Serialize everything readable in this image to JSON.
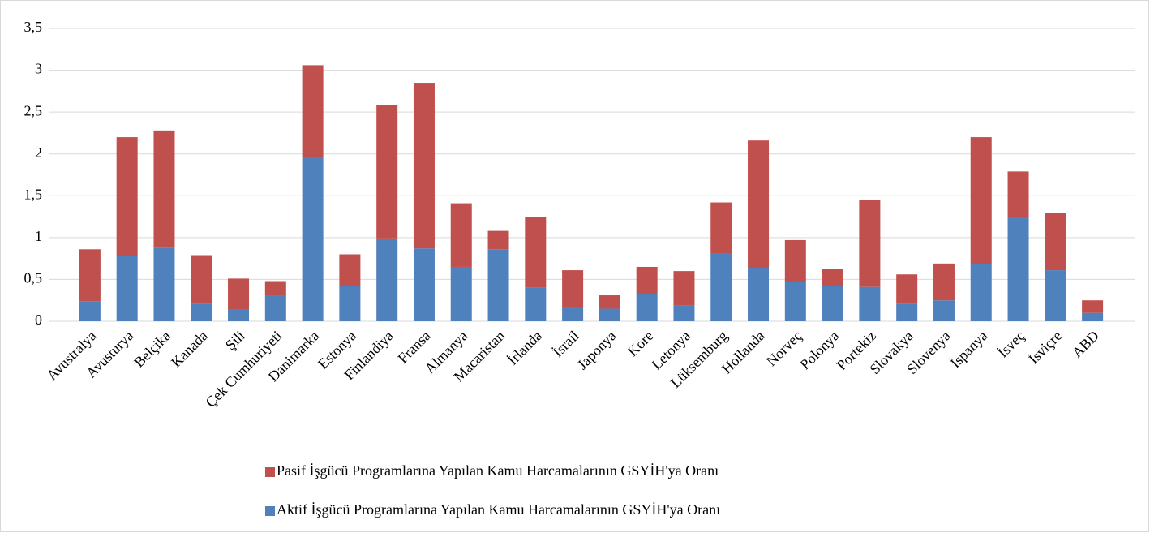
{
  "chart_data": {
    "type": "stacked_bar",
    "categories": [
      "Avustralya",
      "Avusturya",
      "Belçika",
      "Kanada",
      "Şili",
      "Çek Cumhuriyeti",
      "Danimarka",
      "Estonya",
      "Finlandiya",
      "Fransa",
      "Almanya",
      "Macaristan",
      "İrlanda",
      "İsrail",
      "Japonya",
      "Kore",
      "Letonya",
      "Lüksemburg",
      "Hollanda",
      "Norveç",
      "Polonya",
      "Portekiz",
      "Slovakya",
      "Slovenya",
      "İspanya",
      "İsveç",
      "İsviçre",
      "ABD"
    ],
    "series": [
      {
        "name": "Aktif İşgücü Programlarına Yapılan Kamu Harcamalarının GSYİH'ya Oranı",
        "color": "#4f81bd",
        "values": [
          0.24,
          0.78,
          0.88,
          0.21,
          0.14,
          0.31,
          1.96,
          0.42,
          0.99,
          0.87,
          0.65,
          0.86,
          0.4,
          0.17,
          0.15,
          0.32,
          0.19,
          0.81,
          0.64,
          0.47,
          0.42,
          0.41,
          0.21,
          0.25,
          0.68,
          1.25,
          0.61,
          0.1
        ]
      },
      {
        "name": "Pasif İşgücü Programlarına Yapılan Kamu Harcamalarının GSYİH'ya Oranı",
        "color": "#c0504d",
        "values": [
          0.62,
          1.42,
          1.4,
          0.58,
          0.37,
          0.17,
          1.1,
          0.38,
          1.59,
          1.98,
          0.76,
          0.22,
          0.85,
          0.44,
          0.16,
          0.33,
          0.41,
          0.61,
          1.52,
          0.5,
          0.21,
          1.04,
          0.35,
          0.44,
          1.52,
          0.54,
          0.68,
          0.15
        ]
      }
    ],
    "ylim": [
      0,
      3.5
    ],
    "yticks": [
      0,
      {
        "value": 0.5,
        "label": "0,5"
      },
      1,
      {
        "value": 1.5,
        "label": "1,5"
      },
      2,
      {
        "value": 2.5,
        "label": "2,5"
      },
      3,
      {
        "value": 3.5,
        "label": "3,5"
      }
    ],
    "grid": true,
    "legend": "bottom"
  }
}
